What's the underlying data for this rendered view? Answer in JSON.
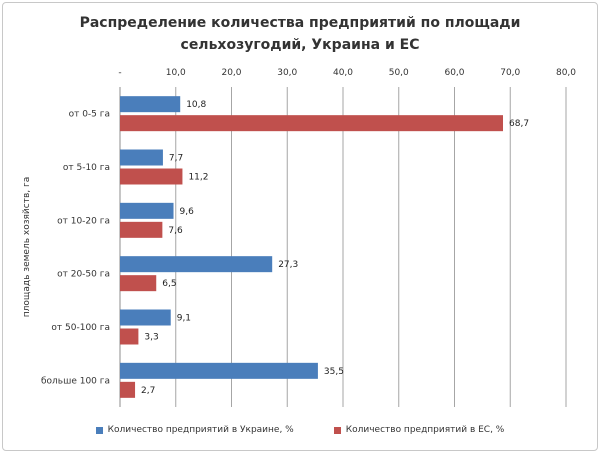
{
  "colors": {
    "ukraine": "#4a7ebb",
    "eu": "#c0504d",
    "grid": "#a6a6a6"
  },
  "chart_data": {
    "type": "bar",
    "orientation": "horizontal",
    "title_line1": "Распределение количества предприятий по площади",
    "title_line2": "сельхозугодий, Украина и ЕС",
    "ylabel": "площадь земель хозяйств, га",
    "xlabel": "",
    "xlim": [
      0,
      80
    ],
    "x_ticks": [
      "-",
      "10,0",
      "20,0",
      "30,0",
      "40,0",
      "50,0",
      "60,0",
      "70,0",
      "80,0"
    ],
    "grid": true,
    "legend_position": "bottom",
    "categories": [
      "от 0-5 га",
      "от 5-10 га",
      "от 10-20 га",
      "от 20-50 га",
      "от 50-100 га",
      "больше 100 га"
    ],
    "series": [
      {
        "name": "Количество предприятий в Украине, %",
        "values": [
          10.8,
          7.7,
          9.6,
          27.3,
          9.1,
          35.5
        ],
        "labels": [
          "10,8",
          "7,7",
          "9,6",
          "27,3",
          "9,1",
          "35,5"
        ]
      },
      {
        "name": "Количество предприятий в ЕС, %",
        "values": [
          68.7,
          11.2,
          7.6,
          6.5,
          3.3,
          2.7
        ],
        "labels": [
          "68,7",
          "11,2",
          "7,6",
          "6,5",
          "3,3",
          "2,7"
        ]
      }
    ]
  }
}
